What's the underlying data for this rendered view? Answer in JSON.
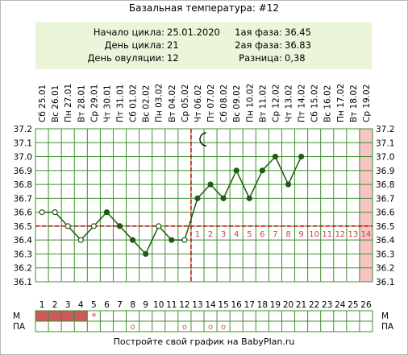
{
  "title": "Базальная температура: #12",
  "info": {
    "cycle_start_label": "Начало цикла:",
    "cycle_start_value": "25.01.2020",
    "cycle_day_label": "День цикла:",
    "cycle_day_value": "21",
    "ovulation_day_label": "День овуляции:",
    "ovulation_day_value": "12",
    "phase1_label": "1ая фаза:",
    "phase1_value": "36.45",
    "phase2_label": "2ая фаза:",
    "phase2_value": "36.83",
    "difference_label": "Разница:",
    "difference_value": "0,38"
  },
  "footer": "Постройте свой график на BabyPlan.ru",
  "colors": {
    "line": "#1f5c12",
    "grid": "#3f8f2f",
    "coverline": "#cc0000",
    "menstruation": "#cc5a5a",
    "today_highlight": "#f7c3c3",
    "infobox": "#eaf5d9",
    "phase_numbers": "#cc4444"
  },
  "chart_data": {
    "type": "line",
    "dates": [
      "Сб 25.01",
      "Вс 26.01",
      "Пн 27.01",
      "Вт 28.01",
      "Ср 29.01",
      "Чт 30.01",
      "Пт 31.01",
      "Сб 01.02",
      "Вс 02.02",
      "Пн 03.02",
      "Вт 04.02",
      "Ср 05.02",
      "Чт 06.02",
      "Пт 07.02",
      "Сб 08.02",
      "Вс 09.02",
      "Пн 10.02",
      "Вт 11.02",
      "Ср 12.02",
      "Чт 13.02",
      "Пт 14.02",
      "Сб 15.02",
      "Вс 16.02",
      "Пн 17.02",
      "Вт 18.02",
      "Ср 19.02"
    ],
    "cycle_days": [
      1,
      2,
      3,
      4,
      5,
      6,
      7,
      8,
      9,
      10,
      11,
      12,
      13,
      14,
      15,
      16,
      17,
      18,
      19,
      20,
      21,
      22,
      23,
      24,
      25,
      26
    ],
    "y_ticks": [
      "37.2",
      "37.1",
      "37.0",
      "36.9",
      "36.8",
      "36.7",
      "36.6",
      "36.5",
      "36.4",
      "36.3",
      "36.2",
      "36.1"
    ],
    "ylim": [
      36.1,
      37.2
    ],
    "temperatures": [
      36.6,
      36.6,
      36.5,
      36.4,
      36.5,
      36.6,
      36.5,
      36.4,
      36.3,
      36.5,
      36.4,
      36.4,
      36.7,
      36.8,
      36.7,
      36.9,
      36.7,
      36.9,
      37.0,
      36.8,
      37.0
    ],
    "point_style": [
      "open",
      "open",
      "open",
      "open",
      "open",
      "filled",
      "filled",
      "filled",
      "filled",
      "open",
      "filled",
      "open",
      "filled",
      "filled",
      "filled",
      "filled",
      "filled",
      "filled",
      "filled",
      "filled",
      "filled"
    ],
    "coverline": 36.5,
    "ovulation_day": 12,
    "phase2_numbers": [
      "1",
      "2",
      "3",
      "4",
      "5",
      "6",
      "7",
      "8",
      "9",
      "10",
      "11",
      "12",
      "13",
      "14"
    ],
    "today_day": 26,
    "moon_day": 13,
    "rows": {
      "m_label": "М",
      "pa_label": "ПА",
      "menstruation_days": [
        1,
        2,
        3,
        4
      ],
      "star_day": 5,
      "star_symbol": "*",
      "pa_circle_days": [
        8,
        12,
        14,
        15
      ],
      "pa_symbol": "o"
    }
  }
}
